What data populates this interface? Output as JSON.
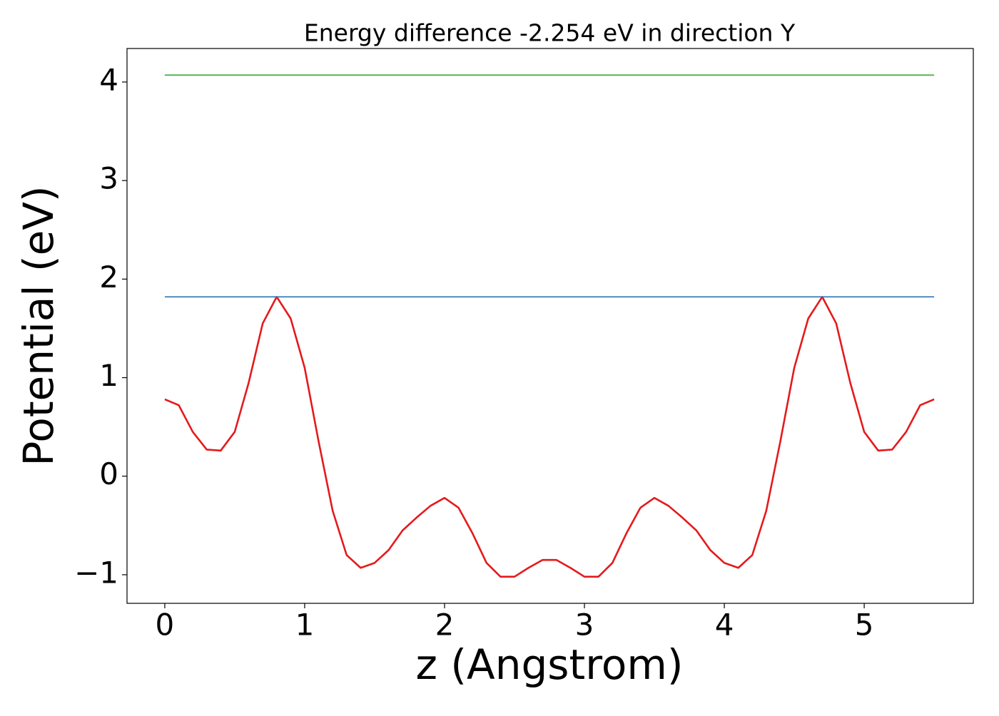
{
  "chart_data": {
    "type": "line",
    "title": "Energy difference -2.254 eV in direction Y",
    "x_label": "z (Angstrom)",
    "y_label": "Potential (eV)",
    "xlim": [
      -0.27,
      5.78
    ],
    "ylim": [
      -1.29,
      4.34
    ],
    "xticks": [
      0,
      1,
      2,
      3,
      4,
      5
    ],
    "yticks": [
      {
        "value": -1,
        "label": "−1"
      },
      0,
      1,
      2,
      3,
      4
    ],
    "series": [
      {
        "color": "#e41a1c",
        "x": [
          0,
          0.1,
          0.2,
          0.3,
          0.4,
          0.5,
          0.6,
          0.7,
          0.8,
          0.9,
          1.0,
          1.1,
          1.2,
          1.3,
          1.4,
          1.5,
          1.6,
          1.7,
          1.8,
          1.9,
          2.0,
          2.1,
          2.2,
          2.3,
          2.4,
          2.5,
          2.6,
          2.7,
          2.8,
          2.9,
          3.0,
          3.1,
          3.2,
          3.3,
          3.4,
          3.5,
          3.6,
          3.7,
          3.8,
          3.9,
          4.0,
          4.1,
          4.2,
          4.3,
          4.4,
          4.5,
          4.6,
          4.7,
          4.8,
          4.9,
          5.0,
          5.1,
          5.2,
          5.3,
          5.4,
          5.5
        ],
        "values": [
          0.78,
          0.72,
          0.45,
          0.27,
          0.26,
          0.45,
          0.95,
          1.55,
          1.82,
          1.6,
          1.1,
          0.35,
          -0.35,
          -0.8,
          -0.93,
          -0.88,
          -0.75,
          -0.55,
          -0.42,
          -0.3,
          -0.22,
          -0.32,
          -0.58,
          -0.88,
          -1.02,
          -1.02,
          -0.93,
          -0.85,
          -0.85,
          -0.93,
          -1.02,
          -1.02,
          -0.88,
          -0.58,
          -0.32,
          -0.22,
          -0.3,
          -0.42,
          -0.55,
          -0.75,
          -0.88,
          -0.93,
          -0.8,
          -0.35,
          0.35,
          1.1,
          1.6,
          1.82,
          1.55,
          0.95,
          0.45,
          0.26,
          0.27,
          0.45,
          0.72,
          0.78
        ]
      },
      {
        "color": "#377eb8",
        "x": [
          0,
          5.5
        ],
        "values": [
          1.82,
          1.82
        ]
      },
      {
        "color": "#4daf4a",
        "x": [
          0,
          5.5
        ],
        "values": [
          4.07,
          4.07
        ]
      }
    ]
  }
}
